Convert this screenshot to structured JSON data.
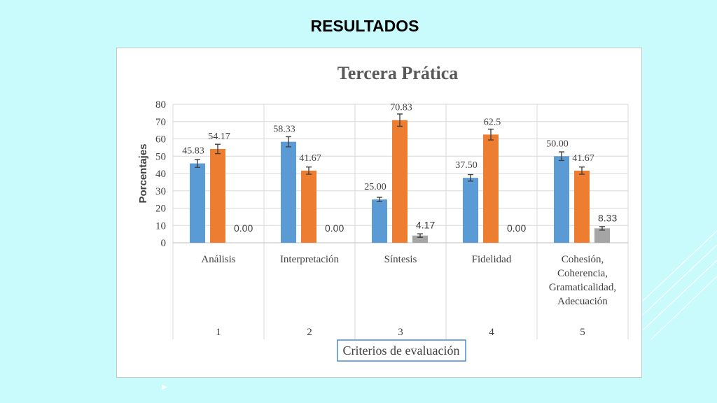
{
  "slide": {
    "title": "RESULTADOS"
  },
  "chart_data": {
    "type": "bar",
    "title": "Tercera Prática",
    "ylabel": "Porcentajes",
    "xlabel": "Criterios de evaluación",
    "ylim": [
      0,
      80
    ],
    "yticks": [
      0,
      10,
      20,
      30,
      40,
      50,
      60,
      70,
      80
    ],
    "grid": true,
    "error_bars": true,
    "categories": [
      {
        "number": "1",
        "label": [
          "Análisis"
        ]
      },
      {
        "number": "2",
        "label": [
          "Interpretación"
        ]
      },
      {
        "number": "3",
        "label": [
          "Síntesis"
        ]
      },
      {
        "number": "4",
        "label": [
          "Fidelidad"
        ]
      },
      {
        "number": "5",
        "label": [
          "Cohesión,",
          "Coherencia,",
          "Gramaticalidad,",
          "Adecuación"
        ]
      }
    ],
    "series": [
      {
        "color": "#5b9bd5",
        "values": [
          45.83,
          58.33,
          25.0,
          37.5,
          50.0
        ],
        "labels": [
          "45.83",
          "58.33",
          "25.00",
          "37.50",
          "50.00"
        ]
      },
      {
        "color": "#ed7d31",
        "values": [
          54.17,
          41.67,
          70.83,
          62.5,
          41.67
        ],
        "labels": [
          "54.17",
          "41.67",
          "70.83",
          "62.5",
          "41.67"
        ]
      },
      {
        "color": "#a5a5a5",
        "values": [
          0.0,
          0.0,
          4.17,
          0.0,
          8.33
        ],
        "labels": [
          "0.00",
          "0.00",
          "4.17",
          "0.00",
          "8.33"
        ]
      }
    ]
  }
}
